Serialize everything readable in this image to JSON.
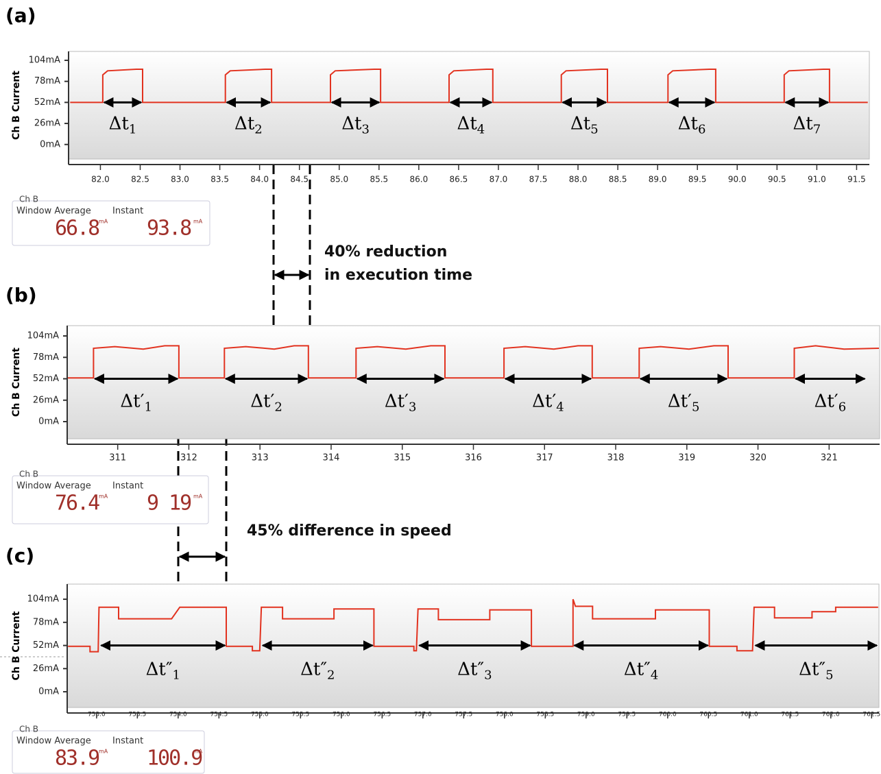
{
  "chart_data": [
    {
      "type": "line",
      "panel": "(a)",
      "ylabel": "Ch B Current",
      "x": [
        81.62,
        82.03,
        82.03,
        82.09,
        82.45,
        82.53,
        82.53,
        83.57,
        83.57,
        83.63,
        84.07,
        84.15,
        84.15,
        84.89,
        84.89,
        84.95,
        85.44,
        85.52,
        85.52,
        86.38,
        86.38,
        86.44,
        86.85,
        86.93,
        86.93,
        87.79,
        87.79,
        87.85,
        88.29,
        88.37,
        88.37,
        89.13,
        89.13,
        89.19,
        89.65,
        89.73,
        89.73,
        90.59,
        90.59,
        90.65,
        91.08,
        91.16,
        91.16,
        91.64
      ],
      "series": [
        {
          "color": "#e2321f",
          "values": [
            52,
            52,
            86,
            91,
            93,
            93,
            52,
            52,
            86,
            91,
            93,
            93,
            52,
            52,
            86,
            91,
            93,
            93,
            52,
            52,
            86,
            91,
            93,
            93,
            52,
            52,
            86,
            91,
            93,
            93,
            52,
            52,
            86,
            91,
            93,
            93,
            52,
            52,
            86,
            91,
            93,
            93,
            52,
            52
          ]
        }
      ],
      "xlim": [
        81.6,
        91.66
      ],
      "ylim": [
        -18,
        115
      ],
      "xticks": [
        {
          "value": 82,
          "label": "82.0"
        },
        82.5,
        {
          "value": 83,
          "label": "83.0"
        },
        83.5,
        {
          "value": 84,
          "label": "84.0"
        },
        84.5,
        {
          "value": 85,
          "label": "85.0"
        },
        85.5,
        {
          "value": 86,
          "label": "86.0"
        },
        86.5,
        {
          "value": 87,
          "label": "87.0"
        },
        87.5,
        {
          "value": 88,
          "label": "88.0"
        },
        88.5,
        {
          "value": 89,
          "label": "89.0"
        },
        89.5,
        {
          "value": 90,
          "label": "90.0"
        },
        90.5,
        {
          "value": 91,
          "label": "91.0"
        },
        91.5
      ],
      "yticks": [
        {
          "value": 0,
          "label": "0mA"
        },
        {
          "value": 26,
          "label": "26mA"
        },
        {
          "value": 52,
          "label": "52mA"
        },
        {
          "value": 78,
          "label": "78mA"
        },
        {
          "value": 104,
          "label": "104mA"
        }
      ],
      "annotations": [
        {
          "symbol": "Δt",
          "index": "1",
          "x": [
            82.03,
            82.53
          ]
        },
        {
          "symbol": "Δt",
          "index": "2",
          "x": [
            83.57,
            84.15
          ]
        },
        {
          "symbol": "Δt",
          "index": "3",
          "x": [
            84.89,
            85.52
          ]
        },
        {
          "symbol": "Δt",
          "index": "4",
          "x": [
            86.38,
            86.93
          ]
        },
        {
          "symbol": "Δt",
          "index": "5",
          "x": [
            87.79,
            88.37
          ]
        },
        {
          "symbol": "Δt",
          "index": "6",
          "x": [
            89.13,
            89.73
          ]
        },
        {
          "symbol": "Δt",
          "index": "7",
          "x": [
            90.59,
            91.16
          ]
        }
      ],
      "meter": {
        "title": "Ch B",
        "average_label": "Window Average",
        "instant_label": "Instant",
        "average": 66.8,
        "instant": 93.8,
        "unit": "mA"
      }
    },
    {
      "type": "line",
      "panel": "(b)",
      "ylabel": "Ch B Current",
      "x": [
        310.3,
        310.66,
        310.66,
        310.96,
        311.36,
        311.66,
        311.86,
        311.86,
        312.5,
        312.5,
        312.8,
        313.2,
        313.48,
        313.68,
        313.68,
        314.35,
        314.35,
        314.65,
        315.05,
        315.4,
        315.6,
        315.6,
        316.43,
        316.43,
        316.73,
        317.13,
        317.47,
        317.67,
        317.67,
        318.33,
        318.33,
        318.63,
        319.03,
        319.38,
        319.58,
        319.58,
        320.51,
        320.51,
        320.81,
        321.21,
        321.7
      ],
      "series": [
        {
          "color": "#e2321f",
          "values": [
            53,
            53,
            89,
            91,
            88,
            92,
            92,
            53,
            53,
            89,
            91,
            88,
            92,
            92,
            53,
            53,
            89,
            91,
            88,
            92,
            92,
            53,
            53,
            89,
            91,
            88,
            92,
            92,
            53,
            53,
            89,
            91,
            88,
            92,
            92,
            53,
            53,
            89,
            92,
            88,
            89
          ]
        }
      ],
      "xlim": [
        310.29,
        321.71
      ],
      "ylim": [
        -20.8,
        116.5
      ],
      "xticks": [
        311,
        312,
        313,
        314,
        315,
        316,
        317,
        318,
        319,
        320,
        321
      ],
      "yticks": [
        {
          "value": 0,
          "label": "0mA"
        },
        {
          "value": 26,
          "label": "26mA"
        },
        {
          "value": 52,
          "label": "52mA"
        },
        {
          "value": 78,
          "label": "78mA"
        },
        {
          "value": 104,
          "label": "104mA"
        }
      ],
      "annotations": [
        {
          "symbol": "Δt′",
          "index": "1",
          "x": [
            310.66,
            311.86
          ]
        },
        {
          "symbol": "Δt′",
          "index": "2",
          "x": [
            312.5,
            313.68
          ]
        },
        {
          "symbol": "Δt′",
          "index": "3",
          "x": [
            314.35,
            315.6
          ]
        },
        {
          "symbol": "Δt′",
          "index": "4",
          "x": [
            316.43,
            317.67
          ]
        },
        {
          "symbol": "Δt′",
          "index": "5",
          "x": [
            318.33,
            319.58
          ]
        },
        {
          "symbol": "Δt′",
          "index": "6",
          "x": [
            320.51,
            321.52
          ]
        }
      ],
      "meter": {
        "title": "Ch B",
        "average_label": "Window Average",
        "instant_label": "Instant",
        "average": 76.4,
        "instant": "9 19",
        "unit": "mA"
      }
    },
    {
      "type": "line",
      "panel": "(c)",
      "ylabel": "Ch B Current",
      "x": [
        752.65,
        752.92,
        752.92,
        753.02,
        753.03,
        753.27,
        753.27,
        753.92,
        754.02,
        754.59,
        754.59,
        754.91,
        754.91,
        755.0,
        755.02,
        755.28,
        755.28,
        755.91,
        755.91,
        756.4,
        756.4,
        756.89,
        756.89,
        756.92,
        756.94,
        757.19,
        757.19,
        757.82,
        757.82,
        758.33,
        758.33,
        758.84,
        758.84,
        758.87,
        759.08,
        759.08,
        759.85,
        759.85,
        760.51,
        760.51,
        760.85,
        760.85,
        761.04,
        761.06,
        761.31,
        761.31,
        761.77,
        761.77,
        762.06,
        762.06,
        762.58
      ],
      "series": [
        {
          "color": "#e2321f",
          "values": [
            51,
            51,
            45,
            45,
            95,
            95,
            82,
            82,
            95,
            95,
            51,
            51,
            46,
            46,
            95,
            95,
            82,
            82,
            93,
            93,
            51,
            51,
            46,
            46,
            93,
            93,
            81,
            81,
            92,
            92,
            51,
            51,
            104,
            96,
            96,
            82,
            82,
            92,
            92,
            51,
            51,
            46,
            46,
            95,
            95,
            83,
            83,
            90,
            90,
            95,
            95
          ]
        }
      ],
      "xlim": [
        752.64,
        762.59
      ],
      "ylim": [
        -17.7,
        121
      ],
      "xticks": [
        {
          "value": 753,
          "label": "753.0"
        },
        753.5,
        {
          "value": 754,
          "label": "754.0"
        },
        754.5,
        {
          "value": 755,
          "label": "755.0"
        },
        755.5,
        {
          "value": 756,
          "label": "756.0"
        },
        756.5,
        {
          "value": 757,
          "label": "757.0"
        },
        757.5,
        {
          "value": 758,
          "label": "758.0"
        },
        758.5,
        {
          "value": 759,
          "label": "759.0"
        },
        759.5,
        {
          "value": 760,
          "label": "760.0"
        },
        760.5,
        {
          "value": 761,
          "label": "761.0"
        },
        761.5,
        {
          "value": 762,
          "label": "762.0"
        },
        762.5
      ],
      "yticks": [
        {
          "value": 0,
          "label": "0mA"
        },
        {
          "value": 26,
          "label": "26mA"
        },
        {
          "value": 52,
          "label": "52mA"
        },
        {
          "value": 78,
          "label": "78mA"
        },
        {
          "value": 104,
          "label": "104mA"
        }
      ],
      "annotations": [
        {
          "symbol": "Δt″",
          "index": "1",
          "x": [
            753.04,
            754.59
          ]
        },
        {
          "symbol": "Δt″",
          "index": "2",
          "x": [
            755.02,
            756.4
          ]
        },
        {
          "symbol": "Δt″",
          "index": "3",
          "x": [
            756.94,
            758.33
          ]
        },
        {
          "symbol": "Δt″",
          "index": "4",
          "x": [
            758.84,
            760.51
          ]
        },
        {
          "symbol": "Δt″",
          "index": "5",
          "x": [
            761.06,
            762.58
          ]
        }
      ],
      "meter": {
        "title": "Ch B",
        "average_label": "Window Average",
        "instant_label": "Instant",
        "average": 83.9,
        "instant": 100.9,
        "unit": "mA"
      }
    }
  ],
  "figure_notes": {
    "reduction_line1": "40% reduction",
    "reduction_line2": "in execution time",
    "speed": "45% difference in speed"
  }
}
